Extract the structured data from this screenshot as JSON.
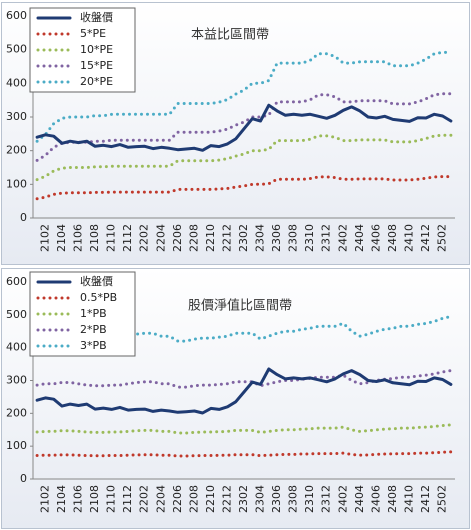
{
  "chart_data": [
    {
      "type": "line",
      "title": "本益比區間帶",
      "categories": [
        null,
        "2102",
        null,
        "2104",
        null,
        "2106",
        null,
        "2108",
        null,
        "2110",
        null,
        "2112",
        null,
        "2202",
        null,
        "2204",
        null,
        "2206",
        null,
        "2208",
        null,
        "2210",
        null,
        "2212",
        null,
        "2302",
        null,
        "2304",
        null,
        "2306",
        null,
        "2308",
        null,
        "2310",
        null,
        "2312",
        null,
        "2402",
        null,
        "2404",
        null,
        "2406",
        null,
        "2408",
        null,
        "2410",
        null,
        "2412",
        null,
        "2502",
        null
      ],
      "ylim": [
        0,
        600
      ],
      "yticks": [
        0,
        100,
        200,
        300,
        400,
        500,
        600
      ],
      "grid": false,
      "legend": "upper left",
      "series": [
        {
          "name": "收盤價",
          "color": "#1f3b73",
          "values": [
            240,
            247,
            243,
            222,
            228,
            224,
            228,
            213,
            216,
            212,
            218,
            210,
            212,
            213,
            206,
            210,
            207,
            203,
            205,
            207,
            201,
            215,
            212,
            220,
            235,
            265,
            295,
            288,
            335,
            318,
            305,
            308,
            305,
            308,
            302,
            296,
            305,
            320,
            330,
            318,
            300,
            297,
            302,
            293,
            290,
            287,
            298,
            297,
            308,
            303,
            288
          ]
        },
        {
          "name": "5*PE",
          "color": "#c0392b",
          "values": [
            57,
            62,
            70,
            74,
            75,
            75,
            75,
            76,
            76,
            77,
            77,
            77,
            77,
            77,
            77,
            77,
            77,
            85,
            85,
            85,
            85,
            85,
            86,
            88,
            92,
            95,
            100,
            100,
            102,
            115,
            115,
            115,
            115,
            117,
            122,
            122,
            120,
            115,
            115,
            116,
            116,
            116,
            116,
            113,
            113,
            113,
            115,
            118,
            122,
            123,
            123
          ]
        },
        {
          "name": "10*PE",
          "color": "#9bbb59",
          "values": [
            114,
            124,
            140,
            148,
            150,
            150,
            150,
            152,
            152,
            154,
            154,
            154,
            154,
            154,
            154,
            154,
            154,
            170,
            170,
            170,
            170,
            170,
            172,
            176,
            184,
            190,
            200,
            200,
            204,
            230,
            230,
            230,
            230,
            234,
            244,
            244,
            240,
            230,
            230,
            232,
            232,
            232,
            232,
            226,
            226,
            226,
            230,
            236,
            244,
            246,
            246
          ]
        },
        {
          "name": "15*PE",
          "color": "#8064a2",
          "values": [
            171,
            186,
            210,
            222,
            225,
            225,
            225,
            228,
            228,
            231,
            231,
            231,
            231,
            231,
            231,
            231,
            231,
            255,
            255,
            255,
            255,
            255,
            258,
            264,
            276,
            285,
            300,
            300,
            306,
            345,
            345,
            345,
            345,
            351,
            366,
            366,
            360,
            345,
            345,
            348,
            348,
            348,
            348,
            339,
            339,
            339,
            345,
            354,
            366,
            369,
            369
          ]
        },
        {
          "name": "20*PE",
          "color": "#4bacc6",
          "values": [
            228,
            248,
            280,
            296,
            300,
            300,
            300,
            304,
            304,
            308,
            308,
            308,
            308,
            308,
            308,
            308,
            308,
            340,
            340,
            340,
            340,
            340,
            344,
            352,
            368,
            380,
            400,
            400,
            408,
            460,
            460,
            460,
            460,
            468,
            488,
            488,
            480,
            460,
            460,
            464,
            464,
            464,
            464,
            452,
            452,
            452,
            460,
            472,
            488,
            492,
            492
          ]
        }
      ]
    },
    {
      "type": "line",
      "title": "股價淨值比區間帶",
      "categories": [
        null,
        "2102",
        null,
        "2104",
        null,
        "2106",
        null,
        "2108",
        null,
        "2110",
        null,
        "2112",
        null,
        "2202",
        null,
        "2204",
        null,
        "2206",
        null,
        "2208",
        null,
        "2210",
        null,
        "2212",
        null,
        "2302",
        null,
        "2304",
        null,
        "2306",
        null,
        "2308",
        null,
        "2310",
        null,
        "2312",
        null,
        "2402",
        null,
        "2404",
        null,
        "2406",
        null,
        "2408",
        null,
        "2410",
        null,
        "2412",
        null,
        "2502",
        null
      ],
      "ylim": [
        0,
        600
      ],
      "yticks": [
        0,
        100,
        200,
        300,
        400,
        500,
        600
      ],
      "grid": false,
      "legend": "upper left",
      "series": [
        {
          "name": "收盤價",
          "color": "#1f3b73",
          "values": [
            240,
            247,
            243,
            222,
            228,
            224,
            228,
            213,
            216,
            212,
            218,
            210,
            212,
            213,
            206,
            210,
            207,
            203,
            205,
            207,
            201,
            215,
            212,
            220,
            235,
            265,
            295,
            288,
            335,
            318,
            305,
            308,
            305,
            308,
            302,
            296,
            305,
            320,
            330,
            318,
            300,
            297,
            302,
            293,
            290,
            287,
            298,
            297,
            308,
            303,
            288
          ]
        },
        {
          "name": "0.5*PB",
          "color": "#c0392b",
          "values": [
            71.5,
            72.5,
            72.5,
            73.5,
            73.5,
            72.5,
            71.5,
            71,
            71,
            71.5,
            71.5,
            72.5,
            73.5,
            74,
            74,
            72.5,
            72.5,
            70,
            70,
            71,
            71.5,
            71.5,
            72,
            72.5,
            74,
            74,
            74,
            71,
            72.5,
            74,
            75,
            75,
            76,
            76.5,
            77.5,
            77.5,
            77.5,
            79,
            75,
            72.5,
            73.5,
            75,
            76,
            76.5,
            77.5,
            77.5,
            78.5,
            79,
            80,
            81.5,
            82.5
          ]
        },
        {
          "name": "1*PB",
          "color": "#9bbb59",
          "values": [
            143,
            145,
            145,
            147,
            147,
            145,
            143,
            142,
            142,
            143,
            143,
            145,
            147,
            148,
            148,
            145,
            145,
            140,
            140,
            142,
            143,
            143,
            144,
            145,
            148,
            148,
            148,
            142,
            145,
            148,
            150,
            150,
            152,
            153,
            155,
            155,
            155,
            158,
            150,
            145,
            147,
            150,
            152,
            153,
            155,
            155,
            157,
            158,
            160,
            163,
            165
          ]
        },
        {
          "name": "2*PB",
          "color": "#8064a2",
          "values": [
            286,
            290,
            290,
            294,
            294,
            290,
            286,
            284,
            284,
            286,
            286,
            290,
            294,
            296,
            296,
            290,
            290,
            280,
            280,
            284,
            286,
            286,
            288,
            290,
            296,
            296,
            296,
            284,
            290,
            296,
            300,
            300,
            304,
            306,
            310,
            310,
            310,
            316,
            300,
            290,
            294,
            300,
            304,
            306,
            310,
            310,
            314,
            316,
            320,
            326,
            330
          ]
        },
        {
          "name": "3*PB",
          "color": "#4bacc6",
          "values": [
            429,
            435,
            435,
            441,
            441,
            435,
            429,
            426,
            426,
            429,
            429,
            435,
            441,
            444,
            444,
            435,
            435,
            420,
            420,
            426,
            429,
            429,
            432,
            435,
            444,
            444,
            444,
            426,
            435,
            444,
            450,
            450,
            456,
            459,
            465,
            465,
            465,
            474,
            450,
            435,
            441,
            450,
            456,
            459,
            465,
            465,
            471,
            474,
            480,
            489,
            495
          ]
        }
      ]
    }
  ]
}
